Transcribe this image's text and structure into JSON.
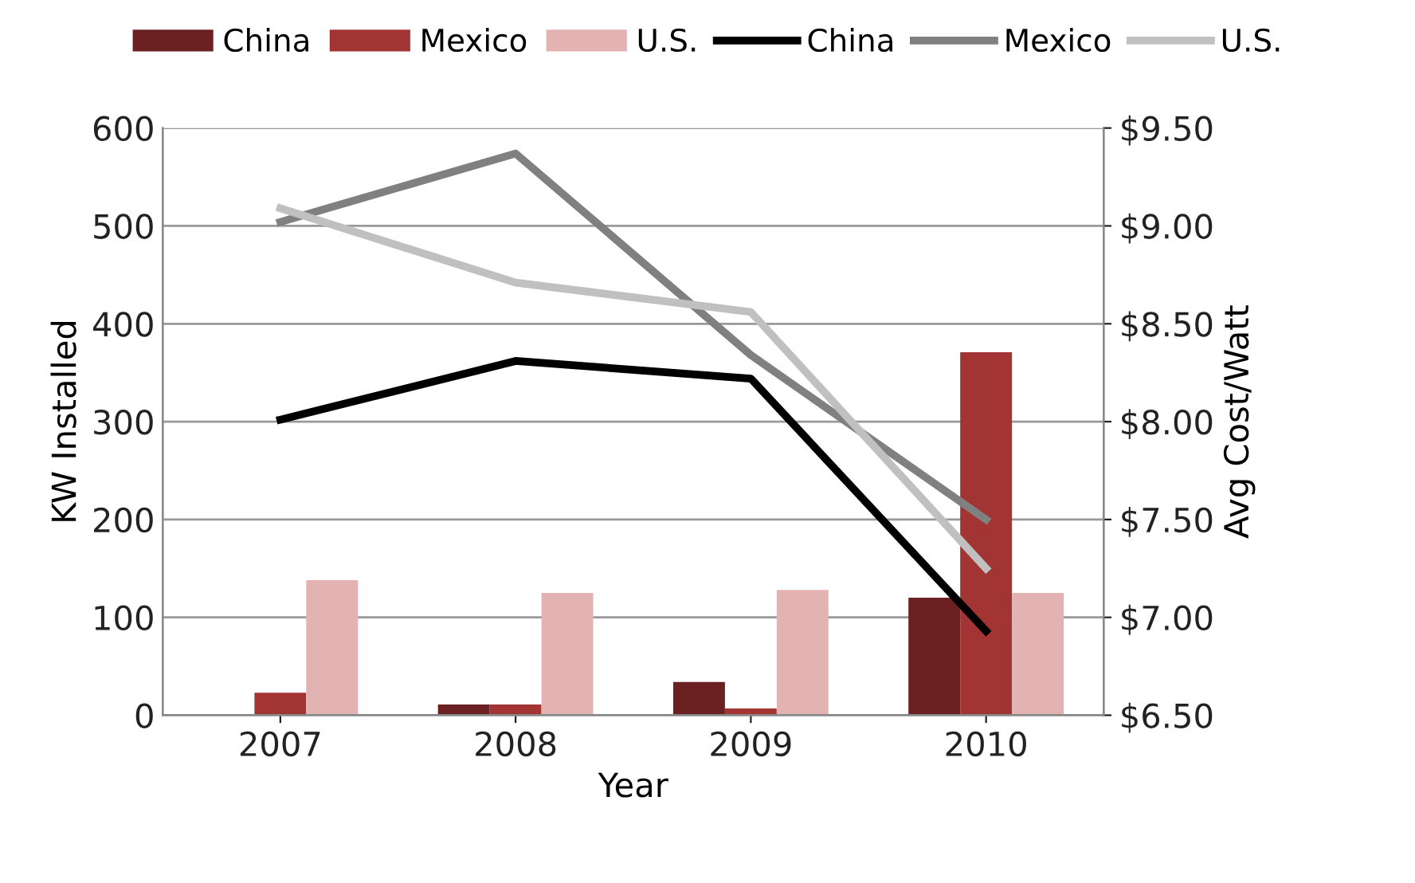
{
  "chart_data": {
    "type": "bar",
    "xlabel": "Year",
    "ylabel": "KW Installed",
    "y2label": "Avg Cost/Watt",
    "categories": [
      "2007",
      "2008",
      "2009",
      "2010"
    ],
    "series": [
      {
        "name": "China",
        "color": "#6b2121",
        "values": [
          0,
          11,
          34,
          120
        ]
      },
      {
        "name": "Mexico",
        "color": "#a33434",
        "values": [
          23,
          11,
          7,
          371
        ]
      },
      {
        "name": "U.S.",
        "color": "#e3b3b3",
        "values": [
          138,
          125,
          128,
          125
        ]
      },
      {
        "name": "China",
        "type": "line",
        "axis": "y2",
        "color": "#000000",
        "values": [
          8.01,
          8.31,
          8.22,
          6.93
        ]
      },
      {
        "name": "Mexico",
        "type": "line",
        "axis": "y2",
        "color": "#808080",
        "values": [
          9.02,
          9.37,
          8.34,
          7.5
        ]
      },
      {
        "name": "U.S.",
        "type": "line",
        "axis": "y2",
        "color": "#c0c0c0",
        "values": [
          9.09,
          8.71,
          8.56,
          7.25
        ]
      }
    ],
    "ylim": [
      0,
      600
    ],
    "yticks": [
      0,
      100,
      200,
      300,
      400,
      500,
      600
    ],
    "y2lim": [
      6.5,
      9.5
    ],
    "y2ticks": [
      {
        "value": 6.5,
        "label": "$6.50"
      },
      {
        "value": 7.0,
        "label": "$7.00"
      },
      {
        "value": 7.5,
        "label": "$7.50"
      },
      {
        "value": 8.0,
        "label": "$8.00"
      },
      {
        "value": 8.5,
        "label": "$8.50"
      },
      {
        "value": 9.0,
        "label": "$9.00"
      },
      {
        "value": 9.5,
        "label": "$9.50"
      }
    ],
    "grid": "y",
    "legend": "top",
    "line_style": "solid",
    "marker": "none"
  }
}
